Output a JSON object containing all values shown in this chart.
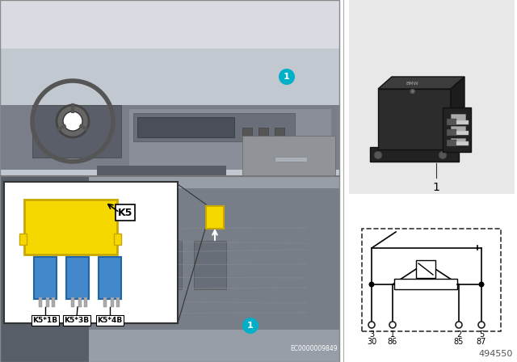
{
  "bg_color": "#ffffff",
  "fig_width": 6.4,
  "fig_height": 4.48,
  "dpi": 100,
  "teal_color": "#00b0c8",
  "yellow_color": "#f5d800",
  "yellow_dark": "#c8a800",
  "blue_color": "#4488cc",
  "blue_dark": "#2266aa",
  "part_number": "494550",
  "ec_number": "EC0000009849",
  "pin_ids": [
    "3",
    "1",
    "2",
    "5"
  ],
  "pin_labels": [
    "30",
    "86",
    "85",
    "87"
  ],
  "connector_labels": [
    "K5*1B",
    "K5*3B",
    "K5*4B"
  ]
}
